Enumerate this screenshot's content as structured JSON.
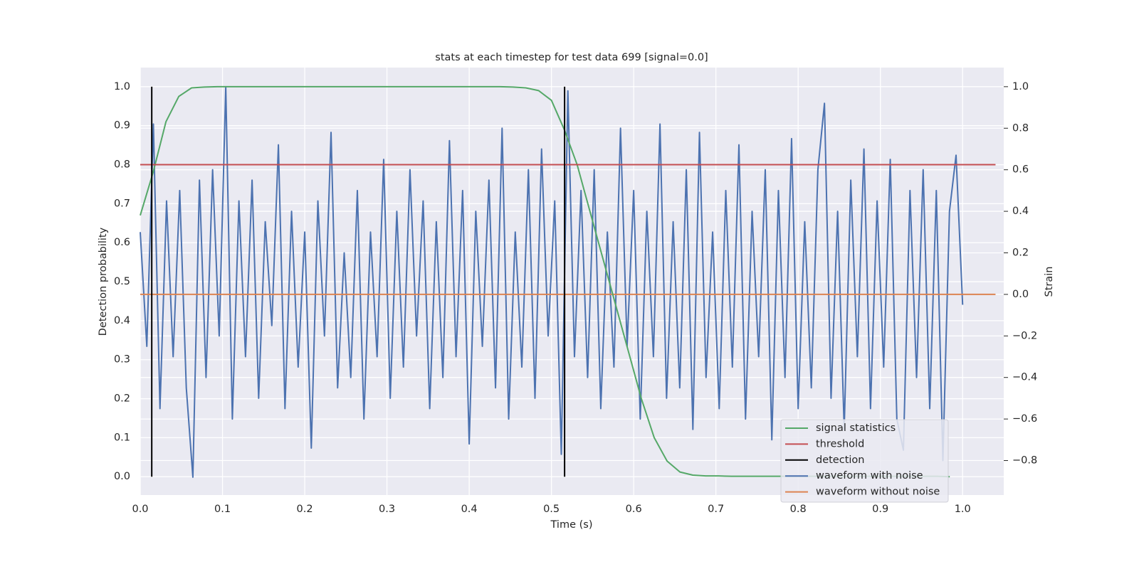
{
  "chart_data": {
    "type": "line",
    "title": "stats at each timestep for test data 699 [signal=0.0]",
    "xlabel": "Time (s)",
    "ylabel": "Detection probability",
    "y2label": "Strain",
    "xlim": [
      0,
      1.05
    ],
    "ylim": [
      -0.047,
      1.049
    ],
    "y2lim": [
      -0.966,
      1.092
    ],
    "xticks": [
      {
        "value": 0,
        "label": "0.0"
      },
      {
        "value": 0.1,
        "label": "0.1"
      },
      {
        "value": 0.2,
        "label": "0.2"
      },
      {
        "value": 0.3,
        "label": "0.3"
      },
      {
        "value": 0.4,
        "label": "0.4"
      },
      {
        "value": 0.5,
        "label": "0.5"
      },
      {
        "value": 0.6,
        "label": "0.6"
      },
      {
        "value": 0.7,
        "label": "0.7"
      },
      {
        "value": 0.8,
        "label": "0.8"
      },
      {
        "value": 0.9,
        "label": "0.9"
      },
      {
        "value": 1,
        "label": "1.0"
      }
    ],
    "yticks": [
      {
        "value": 0,
        "label": "0.0"
      },
      {
        "value": 0.1,
        "label": "0.1"
      },
      {
        "value": 0.2,
        "label": "0.2"
      },
      {
        "value": 0.3,
        "label": "0.3"
      },
      {
        "value": 0.4,
        "label": "0.4"
      },
      {
        "value": 0.5,
        "label": "0.5"
      },
      {
        "value": 0.6,
        "label": "0.6"
      },
      {
        "value": 0.7,
        "label": "0.7"
      },
      {
        "value": 0.8,
        "label": "0.8"
      },
      {
        "value": 0.9,
        "label": "0.9"
      },
      {
        "value": 1,
        "label": "1.0"
      }
    ],
    "y2ticks": [
      {
        "value": -0.8,
        "label": "−0.8"
      },
      {
        "value": -0.6,
        "label": "−0.6"
      },
      {
        "value": -0.4,
        "label": "−0.4"
      },
      {
        "value": -0.2,
        "label": "−0.2"
      },
      {
        "value": 0,
        "label": "0.0"
      },
      {
        "value": 0.2,
        "label": "0.2"
      },
      {
        "value": 0.4,
        "label": "0.4"
      },
      {
        "value": 0.6,
        "label": "0.6"
      },
      {
        "value": 0.8,
        "label": "0.8"
      },
      {
        "value": 1,
        "label": "1.0"
      }
    ],
    "grid": true,
    "legend": "lower right",
    "series": [
      {
        "name": "signal statistics",
        "color": "#55a868",
        "x": [
          0,
          0.015625,
          0.03125,
          0.046875,
          0.0625,
          0.078125,
          0.09375,
          0.109375,
          0.125,
          0.140625,
          0.15625,
          0.171875,
          0.1875,
          0.203125,
          0.21875,
          0.234375,
          0.25,
          0.265625,
          0.28125,
          0.296875,
          0.3125,
          0.328125,
          0.34375,
          0.359375,
          0.375,
          0.390625,
          0.40625,
          0.421875,
          0.4375,
          0.453125,
          0.46875,
          0.484375,
          0.5,
          0.515625,
          0.53125,
          0.546875,
          0.5625,
          0.578125,
          0.59375,
          0.609375,
          0.625,
          0.640625,
          0.65625,
          0.671875,
          0.6875,
          0.703125,
          0.71875,
          0.734375,
          0.75,
          0.765625,
          0.78125,
          0.796875,
          0.8125,
          0.828125,
          0.84375,
          0.859375,
          0.875,
          0.890625,
          0.90625,
          0.921875,
          0.9375,
          0.953125,
          0.96875,
          0.984375
        ],
        "values": [
          0.67,
          0.78,
          0.91,
          0.975,
          0.997,
          0.999,
          1,
          1,
          1,
          1,
          1,
          1,
          1,
          1,
          1,
          1,
          1,
          1,
          1,
          1,
          1,
          1,
          1,
          1,
          1,
          1,
          1,
          1,
          1,
          0.999,
          0.997,
          0.99,
          0.965,
          0.89,
          0.8,
          0.68,
          0.56,
          0.44,
          0.32,
          0.2,
          0.1,
          0.04,
          0.012,
          0.004,
          0.002,
          0.002,
          0.001,
          0.001,
          0.001,
          0.001,
          0.001,
          0.001,
          0.001,
          0.001,
          0.001,
          0.001,
          0.001,
          0.001,
          0.001,
          0.001,
          0.001,
          0.001,
          0.001,
          0
        ]
      },
      {
        "name": "threshold",
        "color": "#c44e52",
        "x": [
          0,
          1.04
        ],
        "values": [
          0.8,
          0.8
        ]
      },
      {
        "name": "detection",
        "color": "#000000",
        "x": [
          0.014,
          0.516
        ],
        "ymin": [
          0,
          0
        ],
        "values": [
          1,
          1
        ]
      },
      {
        "name": "waveform with noise",
        "color": "#4c72b0",
        "axis": "y2",
        "x": [
          0,
          0.008,
          0.016,
          0.024,
          0.032,
          0.04,
          0.048,
          0.056,
          0.064,
          0.072,
          0.08,
          0.088,
          0.096,
          0.104,
          0.112,
          0.12,
          0.128,
          0.136,
          0.144,
          0.152,
          0.16,
          0.168,
          0.176,
          0.184,
          0.192,
          0.2,
          0.208,
          0.216,
          0.224,
          0.232,
          0.24,
          0.248,
          0.256,
          0.264,
          0.272,
          0.28,
          0.288,
          0.296,
          0.304,
          0.312,
          0.32,
          0.328,
          0.336,
          0.344,
          0.352,
          0.36,
          0.368,
          0.376,
          0.384,
          0.392,
          0.4,
          0.408,
          0.416,
          0.424,
          0.432,
          0.44,
          0.448,
          0.456,
          0.464,
          0.472,
          0.48,
          0.488,
          0.496,
          0.504,
          0.512,
          0.52,
          0.528,
          0.536,
          0.544,
          0.552,
          0.56,
          0.568,
          0.576,
          0.584,
          0.592,
          0.6,
          0.608,
          0.616,
          0.624,
          0.632,
          0.64,
          0.648,
          0.656,
          0.664,
          0.672,
          0.68,
          0.688,
          0.696,
          0.704,
          0.712,
          0.72,
          0.728,
          0.736,
          0.744,
          0.752,
          0.76,
          0.768,
          0.776,
          0.784,
          0.792,
          0.8,
          0.808,
          0.816,
          0.824,
          0.832,
          0.84,
          0.848,
          0.856,
          0.864,
          0.872,
          0.88,
          0.888,
          0.896,
          0.904,
          0.912,
          0.92,
          0.928,
          0.936,
          0.944,
          0.952,
          0.96,
          0.968,
          0.976,
          0.984,
          0.992,
          1
        ],
        "values": [
          0.3,
          -0.25,
          0.82,
          -0.55,
          0.45,
          -0.3,
          0.5,
          -0.45,
          -0.88,
          0.55,
          -0.4,
          0.6,
          -0.2,
          1,
          -0.6,
          0.45,
          -0.3,
          0.55,
          -0.5,
          0.35,
          -0.15,
          0.72,
          -0.55,
          0.4,
          -0.35,
          0.3,
          -0.74,
          0.45,
          -0.2,
          0.78,
          -0.45,
          0.2,
          -0.4,
          0.5,
          -0.6,
          0.3,
          -0.3,
          0.65,
          -0.5,
          0.4,
          -0.35,
          0.6,
          -0.2,
          0.45,
          -0.55,
          0.35,
          -0.4,
          0.74,
          -0.3,
          0.5,
          -0.72,
          0.4,
          -0.25,
          0.55,
          -0.45,
          0.8,
          -0.6,
          0.3,
          -0.35,
          0.6,
          -0.5,
          0.7,
          -0.2,
          0.45,
          -0.77,
          0.98,
          -0.3,
          0.5,
          -0.4,
          0.6,
          -0.55,
          0.3,
          -0.35,
          0.8,
          -0.25,
          0.5,
          -0.6,
          0.4,
          -0.3,
          0.82,
          -0.5,
          0.35,
          -0.45,
          0.6,
          -0.65,
          0.78,
          -0.4,
          0.3,
          -0.55,
          0.5,
          -0.35,
          0.72,
          -0.6,
          0.4,
          -0.3,
          0.6,
          -0.7,
          0.5,
          -0.4,
          0.75,
          -0.55,
          0.35,
          -0.45,
          0.6,
          0.92,
          -0.5,
          0.4,
          -0.65,
          0.55,
          -0.3,
          0.7,
          -0.55,
          0.45,
          -0.35,
          0.65,
          -0.6,
          -0.75,
          0.5,
          -0.4,
          0.6,
          -0.55,
          0.5,
          -0.8,
          0.4,
          0.67,
          -0.05
        ]
      },
      {
        "name": "waveform without noise",
        "color": "#dd8452",
        "axis": "y2",
        "x": [
          0,
          1.04
        ],
        "values": [
          0,
          0
        ]
      }
    ]
  }
}
